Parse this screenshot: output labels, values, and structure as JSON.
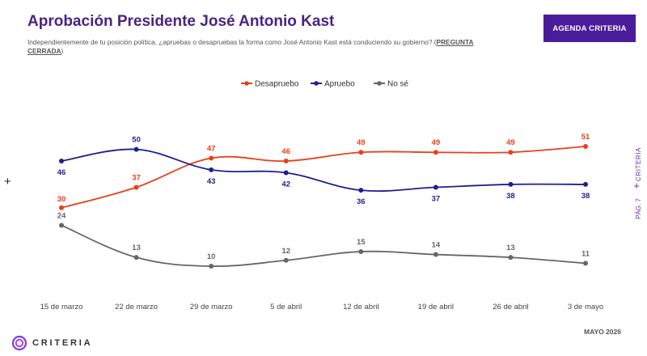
{
  "header": {
    "title": "Aprobación Presidente José Antonio Kast",
    "subtitle": "Independientemente de tu posición política, ¿apruebas o desapruebas la forma como José Antonio Kast está conduciendo su gobierno? (",
    "subtitle_emph": "PREGUNTA CERRADA",
    "subtitle_end": ")",
    "agenda_button": "AGENDA CRITERIA"
  },
  "side": {
    "brand": "CRITERIA",
    "page": "PÁG. 7",
    "plus": "+"
  },
  "footer": {
    "date": "MAYO 2026",
    "logo_text": "CRITERIA"
  },
  "colors": {
    "title": "#4a2382",
    "accent": "#4a1c9c",
    "desapruebo": "#e8401c",
    "apruebo": "#1f1f8f",
    "nose": "#666666"
  },
  "chart_data": {
    "type": "line",
    "categories": [
      "15 de marzo",
      "22 de marzo",
      "29 de marzo",
      "5 de abril",
      "12 de abril",
      "19 de abril",
      "26 de abril",
      "3 de mayo"
    ],
    "series": [
      {
        "name": "Desapruebo",
        "color": "#e8401c",
        "values": [
          30,
          37,
          47,
          46,
          49,
          49,
          49,
          51
        ]
      },
      {
        "name": "Apruebo",
        "color": "#1f1f8f",
        "values": [
          46,
          50,
          43,
          42,
          36,
          37,
          38,
          38
        ]
      },
      {
        "name": "No sé",
        "color": "#666666",
        "values": [
          24,
          13,
          10,
          12,
          15,
          14,
          13,
          11
        ]
      }
    ],
    "legend_position": "top-center",
    "grid": false,
    "y_axis_visible": false
  }
}
